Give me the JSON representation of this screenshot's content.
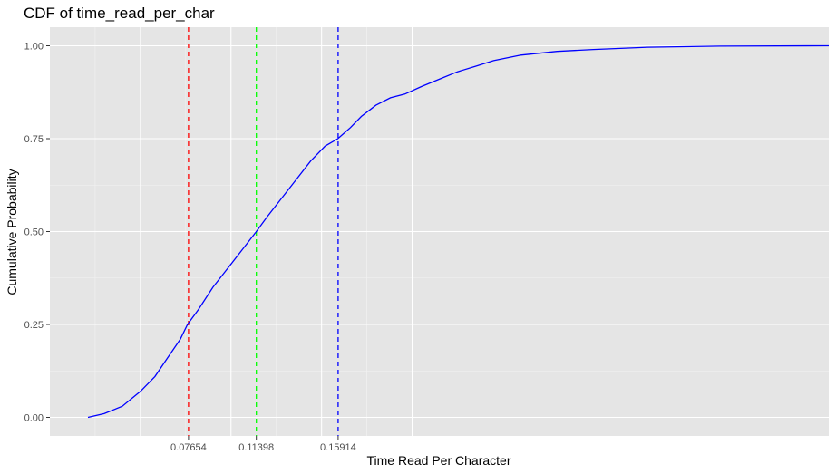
{
  "chart_data": {
    "type": "line",
    "title": "CDF of time_read_per_char",
    "xlabel": "Time Read Per Character",
    "ylabel": "Cumulative Probability",
    "xlim": [
      0.0,
      0.43
    ],
    "ylim": [
      -0.05,
      1.05
    ],
    "yticks": [
      0.0,
      0.25,
      0.5,
      0.75,
      1.0
    ],
    "ytick_labels": [
      "0.00",
      "0.25",
      "0.50",
      "0.75",
      "1.00"
    ],
    "xticks": [
      0.07654,
      0.11398,
      0.15914
    ],
    "xtick_labels": [
      "0.07654",
      "0.11398",
      "0.15914"
    ],
    "x_major_gridlines": [
      0.05,
      0.1,
      0.15,
      0.2
    ],
    "x_minor_gridlines": [
      0.025,
      0.075,
      0.125,
      0.175
    ],
    "y_minor_gridlines": [
      0.125,
      0.375,
      0.625,
      0.875
    ],
    "background": "#e5e5e5",
    "grid": true,
    "legend": "none",
    "series": [
      {
        "color": "#0000ff",
        "x": [
          0.021,
          0.03,
          0.04,
          0.05,
          0.058,
          0.065,
          0.072,
          0.076,
          0.082,
          0.09,
          0.098,
          0.106,
          0.114,
          0.12,
          0.128,
          0.136,
          0.144,
          0.152,
          0.159,
          0.166,
          0.172,
          0.18,
          0.188,
          0.196,
          0.205,
          0.215,
          0.225,
          0.235,
          0.245,
          0.26,
          0.28,
          0.3,
          0.33,
          0.37,
          0.43
        ],
        "y": [
          0.0,
          0.01,
          0.03,
          0.07,
          0.11,
          0.16,
          0.21,
          0.25,
          0.29,
          0.35,
          0.4,
          0.45,
          0.5,
          0.54,
          0.59,
          0.64,
          0.69,
          0.73,
          0.75,
          0.78,
          0.81,
          0.84,
          0.86,
          0.87,
          0.89,
          0.91,
          0.93,
          0.945,
          0.96,
          0.975,
          0.985,
          0.99,
          0.996,
          0.999,
          1.0
        ]
      }
    ],
    "reference_lines": [
      {
        "x": 0.07654,
        "color": "#ff0000",
        "style": "dashed"
      },
      {
        "x": 0.11398,
        "color": "#00ff00",
        "style": "dashed"
      },
      {
        "x": 0.15914,
        "color": "#0000ff",
        "style": "dashed"
      }
    ]
  }
}
